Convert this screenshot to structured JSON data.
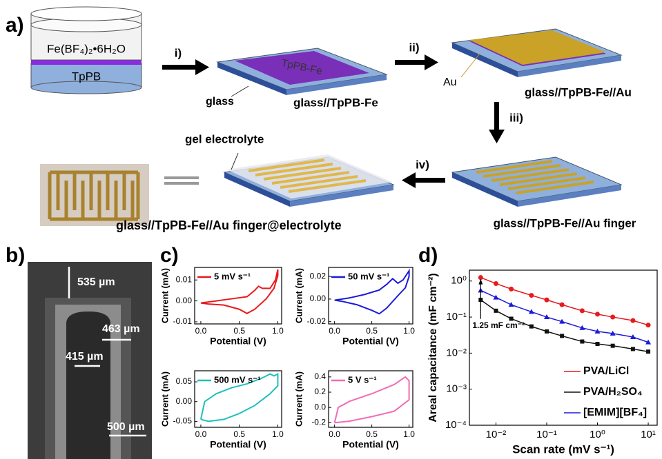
{
  "panel_labels": [
    "a)",
    "b)",
    "c)",
    "d)"
  ],
  "schematic": {
    "solution": "Fe(BF₄)₂•6H₂O",
    "substrate": "TpPB",
    "film": "TpPB-Fe",
    "steps": [
      "i)",
      "ii)",
      "iii)",
      "iv)"
    ],
    "glass": "glass",
    "au": "Au",
    "gel": "gel electrolyte",
    "products": [
      "glass//TpPB-Fe",
      "glass//TpPB-Fe//Au",
      "glass//TpPB-Fe//Au finger",
      "glass//TpPB-Fe//Au finger@electrolyte"
    ]
  },
  "micrograph": {
    "scale_labels": [
      "535 µm",
      "463 µm",
      "415 µm",
      "500 µm"
    ]
  },
  "chart_data": [
    {
      "type": "line",
      "xlabel": "Potential (V)",
      "ylabel": "Current (mA)",
      "x": [
        0.0,
        0.2,
        0.4,
        0.6,
        0.7,
        0.75,
        0.8,
        0.9,
        0.97,
        1.0,
        1.0,
        0.95,
        0.85,
        0.7,
        0.6,
        0.5,
        0.3,
        0.1,
        0.0
      ],
      "series": [
        {
          "name": "5 mV s⁻¹",
          "color": "#e8191c",
          "values": [
            -0.001,
            0.0,
            0.001,
            0.002,
            0.005,
            0.007,
            0.006,
            0.006,
            0.01,
            0.015,
            0.012,
            0.006,
            0.001,
            -0.004,
            -0.006,
            -0.004,
            -0.002,
            -0.0015,
            -0.001
          ]
        }
      ],
      "xlim": [
        -0.08,
        1.05
      ],
      "ylim": [
        -0.011,
        0.016
      ],
      "xticks": [
        {
          "value": 0,
          "label": "0.0"
        },
        {
          "value": 0.5,
          "label": "0.5"
        },
        {
          "value": 1,
          "label": "1.0"
        }
      ],
      "yticks": [
        -0.01,
        {
          "value": 0,
          "label": "0.00"
        },
        0.01
      ]
    },
    {
      "type": "line",
      "xlabel": "Potential (V)",
      "ylabel": "Current (mA)",
      "x": [
        0.0,
        0.2,
        0.4,
        0.6,
        0.7,
        0.78,
        0.85,
        0.92,
        1.0,
        1.0,
        0.95,
        0.85,
        0.7,
        0.6,
        0.5,
        0.3,
        0.1,
        0.0
      ],
      "series": [
        {
          "name": "50 mV s⁻¹",
          "color": "#1a1adb",
          "values": [
            -0.001,
            0.001,
            0.004,
            0.008,
            0.013,
            0.018,
            0.014,
            0.017,
            0.025,
            0.02,
            0.01,
            0.003,
            -0.008,
            -0.013,
            -0.01,
            -0.005,
            -0.002,
            -0.001
          ]
        }
      ],
      "xlim": [
        -0.08,
        1.05
      ],
      "ylim": [
        -0.022,
        0.028
      ],
      "xticks": [
        {
          "value": 0,
          "label": "0.0"
        },
        {
          "value": 0.5,
          "label": "0.5"
        },
        {
          "value": 1,
          "label": "1.0"
        }
      ],
      "yticks": [
        -0.02,
        {
          "value": 0,
          "label": "0.00"
        },
        0.02
      ]
    },
    {
      "type": "line",
      "xlabel": "Potential (V)",
      "ylabel": "Current (mA)",
      "x": [
        0.0,
        0.05,
        0.2,
        0.4,
        0.6,
        0.8,
        0.9,
        0.95,
        1.0,
        1.0,
        0.9,
        0.7,
        0.5,
        0.3,
        0.1,
        0.0
      ],
      "series": [
        {
          "name": "500 mV s⁻¹",
          "color": "#1fbfbf",
          "values": [
            -0.045,
            0.0,
            0.02,
            0.035,
            0.045,
            0.06,
            0.07,
            0.065,
            0.07,
            0.04,
            0.02,
            -0.01,
            -0.03,
            -0.045,
            -0.05,
            -0.045
          ]
        }
      ],
      "xlim": [
        -0.08,
        1.05
      ],
      "ylim": [
        -0.065,
        0.078
      ],
      "xticks": [
        {
          "value": 0,
          "label": "0.0"
        },
        {
          "value": 0.5,
          "label": "0.5"
        },
        {
          "value": 1,
          "label": "1.0"
        }
      ],
      "yticks": [
        -0.05,
        {
          "value": 0,
          "label": "0.00"
        },
        0.05
      ]
    },
    {
      "type": "line",
      "xlabel": "Potential (V)",
      "ylabel": "Current (mA)",
      "x": [
        0.0,
        0.05,
        0.2,
        0.5,
        0.8,
        0.95,
        1.0,
        1.0,
        0.8,
        0.5,
        0.2,
        0.0
      ],
      "series": [
        {
          "name": "5 V s⁻¹",
          "color": "#f06cb4",
          "values": [
            -0.2,
            0.0,
            0.08,
            0.18,
            0.3,
            0.4,
            0.35,
            0.1,
            -0.05,
            -0.12,
            -0.18,
            -0.2
          ]
        }
      ],
      "xlim": [
        -0.08,
        1.05
      ],
      "ylim": [
        -0.26,
        0.48
      ],
      "xticks": [
        {
          "value": 0,
          "label": "0.0"
        },
        {
          "value": 0.5,
          "label": "0.5"
        },
        {
          "value": 1,
          "label": "1.0"
        }
      ],
      "yticks": [
        -0.2,
        {
          "value": 0,
          "label": "0.0"
        },
        0.2,
        0.4
      ]
    },
    {
      "type": "line",
      "xlabel": "Scan rate (mV s⁻¹)",
      "ylabel": "Areal capacitance (mF cm⁻²)",
      "log_x": true,
      "log_y": true,
      "legend": "lower right",
      "markers": true,
      "annotation": "1.25 mF cm⁻²",
      "x": [
        0.005,
        0.01,
        0.02,
        0.05,
        0.1,
        0.2,
        0.5,
        1,
        2,
        5,
        10
      ],
      "series": [
        {
          "name": "PVA/LiCl",
          "color": "#e8191c",
          "marker": "circle",
          "values": [
            1.25,
            0.85,
            0.6,
            0.4,
            0.3,
            0.22,
            0.15,
            0.12,
            0.1,
            0.08,
            0.06
          ]
        },
        {
          "name": "PVA/H₂SO₄",
          "color": "#111111",
          "marker": "square",
          "values": [
            0.3,
            0.15,
            0.09,
            0.055,
            0.04,
            0.03,
            0.021,
            0.018,
            0.016,
            0.013,
            0.011
          ]
        },
        {
          "name": "[EMIM][BF₄]",
          "color": "#1a1adb",
          "marker": "triangle",
          "values": [
            0.55,
            0.35,
            0.22,
            0.14,
            0.1,
            0.075,
            0.05,
            0.04,
            0.035,
            0.028,
            0.02
          ]
        }
      ],
      "xlim": [
        0.003,
        15
      ],
      "ylim": [
        0.0001,
        2
      ],
      "xticks": [
        {
          "value": 0.01,
          "label": "10⁻²"
        },
        {
          "value": 0.1,
          "label": "10⁻¹"
        },
        {
          "value": 1,
          "label": "10⁰"
        },
        {
          "value": 10,
          "label": "10¹"
        }
      ],
      "yticks": [
        {
          "value": 0.0001,
          "label": "10⁻⁴"
        },
        {
          "value": 0.001,
          "label": "10⁻³"
        },
        {
          "value": 0.01,
          "label": "10⁻²"
        },
        {
          "value": 0.1,
          "label": "10⁻¹"
        },
        {
          "value": 1,
          "label": "10⁰"
        }
      ]
    }
  ]
}
